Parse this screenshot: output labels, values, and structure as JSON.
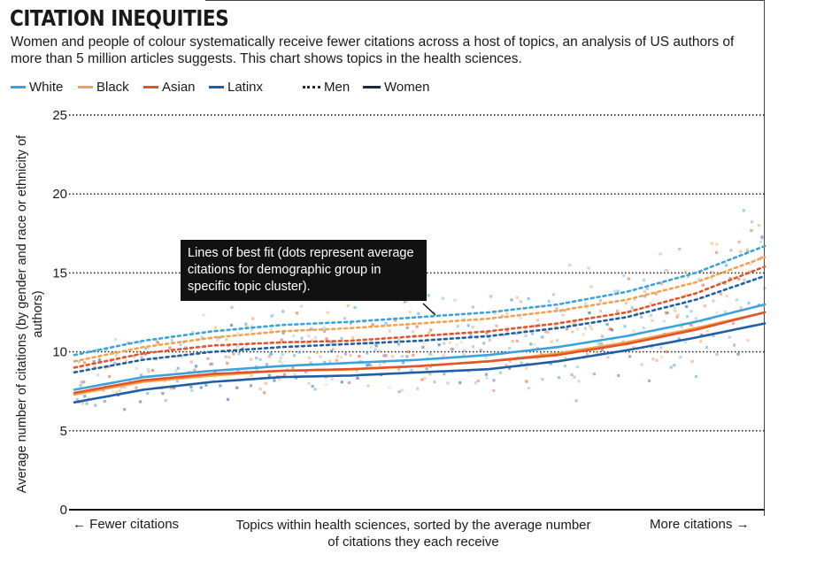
{
  "chart_data": {
    "type": "scatter",
    "title": "CITATION INEQUITIES",
    "subtitle": "Women and people of colour systematically receive fewer citations across a host of topics, an analysis of US authors of more than 5 million articles suggests. This chart shows topics in the health sciences.",
    "ylabel": "Average number of citations (by gender and race or ethnicity of authors)",
    "xlabel": "Topics within health sciences, sorted by the average number of citations they each receive",
    "x_left_label": "← Fewer citations",
    "x_right_label": "More citations →",
    "ylim": [
      0,
      25
    ],
    "xlim": [
      0,
      100
    ],
    "yticks": [
      "0",
      "5",
      "10",
      "15",
      "20",
      "25"
    ],
    "grid": true,
    "annotation": "Lines of best fit (dots represent average citations for demographic group in specific topic cluster).",
    "legend": {
      "placement": "top-left",
      "races": [
        {
          "name": "White",
          "color": "#3ba3dc"
        },
        {
          "name": "Black",
          "color": "#f4a24c"
        },
        {
          "name": "Asian",
          "color": "#e4532a"
        },
        {
          "name": "Latinx",
          "color": "#1f5fa6"
        }
      ],
      "genders": [
        {
          "name": "Men",
          "style": "dotted"
        },
        {
          "name": "Women",
          "style": "solid"
        }
      ]
    },
    "series": [
      {
        "race": "White",
        "gender": "Men",
        "x": [
          0,
          10,
          20,
          30,
          40,
          50,
          60,
          70,
          80,
          90,
          100
        ],
        "y": [
          9.8,
          10.7,
          11.3,
          11.7,
          11.9,
          12.2,
          12.5,
          13.0,
          13.8,
          15.0,
          16.7
        ]
      },
      {
        "race": "Black",
        "gender": "Men",
        "x": [
          0,
          10,
          20,
          30,
          40,
          50,
          60,
          70,
          80,
          90,
          100
        ],
        "y": [
          9.4,
          10.3,
          10.9,
          11.3,
          11.5,
          11.8,
          12.1,
          12.6,
          13.3,
          14.4,
          16.0
        ]
      },
      {
        "race": "Asian",
        "gender": "Men",
        "x": [
          0,
          10,
          20,
          30,
          40,
          50,
          60,
          70,
          80,
          90,
          100
        ],
        "y": [
          9.0,
          9.9,
          10.4,
          10.6,
          10.7,
          11.0,
          11.3,
          11.8,
          12.5,
          13.7,
          15.4
        ]
      },
      {
        "race": "Latinx",
        "gender": "Men",
        "x": [
          0,
          10,
          20,
          30,
          40,
          50,
          60,
          70,
          80,
          90,
          100
        ],
        "y": [
          8.7,
          9.5,
          10.0,
          10.3,
          10.5,
          10.7,
          11.0,
          11.5,
          12.2,
          13.3,
          14.8
        ]
      },
      {
        "race": "White",
        "gender": "Women",
        "x": [
          0,
          10,
          20,
          30,
          40,
          50,
          60,
          70,
          80,
          90,
          100
        ],
        "y": [
          7.6,
          8.4,
          8.8,
          9.1,
          9.3,
          9.5,
          9.8,
          10.3,
          11.0,
          11.9,
          13.0
        ]
      },
      {
        "race": "Black",
        "gender": "Women",
        "x": [
          0,
          10,
          20,
          30,
          40,
          50,
          60,
          70,
          80,
          90,
          100
        ],
        "y": [
          7.3,
          8.1,
          8.5,
          8.8,
          8.9,
          9.1,
          9.4,
          9.9,
          10.6,
          11.5,
          12.5
        ]
      },
      {
        "race": "Asian",
        "gender": "Women",
        "x": [
          0,
          10,
          20,
          30,
          40,
          50,
          60,
          70,
          80,
          90,
          100
        ],
        "y": [
          7.4,
          8.2,
          8.6,
          8.8,
          8.9,
          9.1,
          9.4,
          9.8,
          10.5,
          11.4,
          12.5
        ]
      },
      {
        "race": "Latinx",
        "gender": "Women",
        "x": [
          0,
          10,
          20,
          30,
          40,
          50,
          60,
          70,
          80,
          90,
          100
        ],
        "y": [
          6.8,
          7.6,
          8.1,
          8.4,
          8.5,
          8.7,
          8.9,
          9.4,
          10.1,
          10.9,
          11.8
        ]
      }
    ]
  }
}
